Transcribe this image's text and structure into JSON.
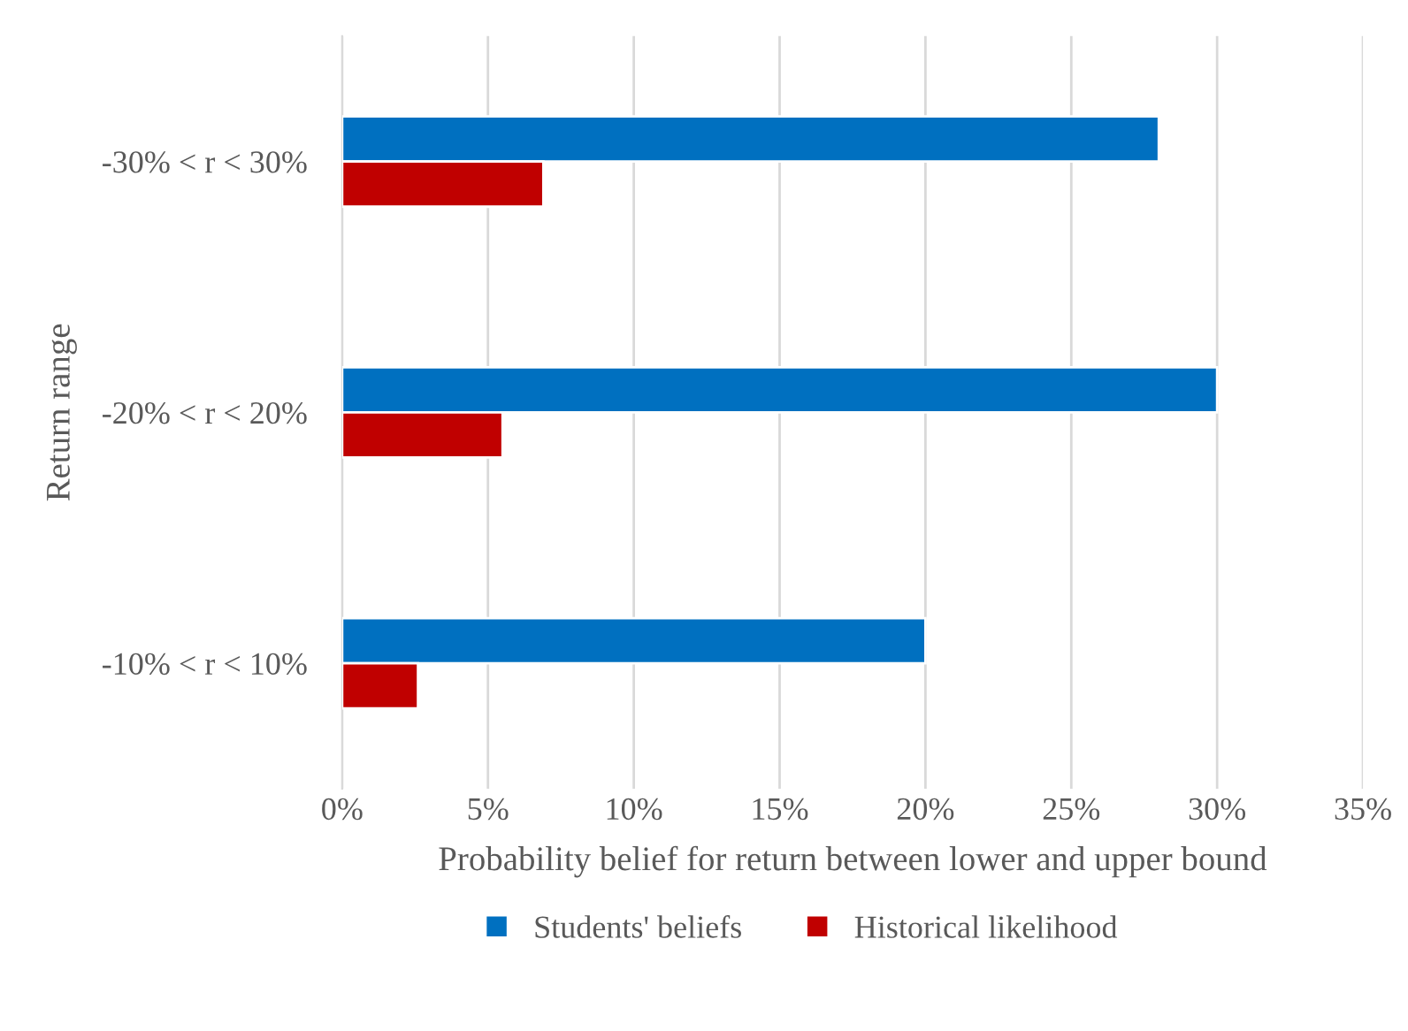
{
  "chart_data": {
    "type": "bar",
    "orientation": "horizontal",
    "xlabel": "Probability belief for return between lower and upper bound",
    "ylabel": "Return range",
    "categories": [
      "-30% < r < 30%",
      "-20% < r < 20%",
      "-10% < r < 10%"
    ],
    "series": [
      {
        "name": "Students' beliefs",
        "color": "#0070c0",
        "values": [
          28,
          30,
          20
        ]
      },
      {
        "name": "Historical likelihood",
        "color": "#c00000",
        "values": [
          6.9,
          5.5,
          2.6
        ]
      }
    ],
    "xlim": [
      0,
      35
    ],
    "xticks": [
      {
        "value": 0,
        "label": "0%"
      },
      {
        "value": 5,
        "label": "5%"
      },
      {
        "value": 10,
        "label": "10%"
      },
      {
        "value": 15,
        "label": "15%"
      },
      {
        "value": 20,
        "label": "20%"
      },
      {
        "value": 25,
        "label": "25%"
      },
      {
        "value": 30,
        "label": "30%"
      },
      {
        "value": 35,
        "label": "35%"
      }
    ],
    "grid": "x",
    "legend": "bottom"
  }
}
